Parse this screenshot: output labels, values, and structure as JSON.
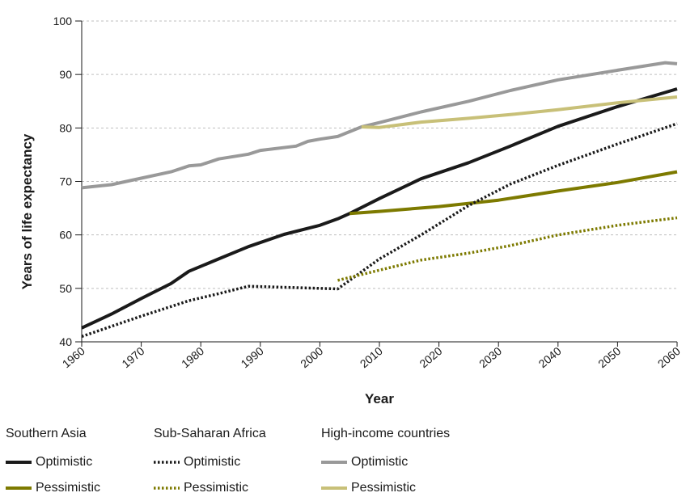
{
  "chart_data": {
    "type": "line",
    "title": "",
    "xlabel": "Year",
    "ylabel": "Years of life expectancy",
    "xlim": [
      1960,
      2060
    ],
    "ylim": [
      40,
      100
    ],
    "x_ticks": [
      "1960",
      "1970",
      "1980",
      "1990",
      "2000",
      "2010",
      "2020",
      "2030",
      "2040",
      "2050",
      "2060"
    ],
    "y_ticks": [
      "40",
      "50",
      "60",
      "70",
      "80",
      "90",
      "100"
    ],
    "grid": "horizontal dashed",
    "legend_position": "bottom",
    "series": [
      {
        "group": "Southern Asia",
        "name": "Optimistic",
        "color": "#1a1a1a",
        "style": "solid",
        "x": [
          1960,
          1965,
          1970,
          1975,
          1978,
          1983,
          1988,
          1994,
          2000,
          2003,
          2005,
          2010,
          2017,
          2025,
          2032,
          2040,
          2050,
          2060
        ],
        "y": [
          42.6,
          45.2,
          48.1,
          50.9,
          53.2,
          55.5,
          57.8,
          60.1,
          61.8,
          63.0,
          64.0,
          66.8,
          70.5,
          73.5,
          76.6,
          80.3,
          84.0,
          87.3
        ]
      },
      {
        "group": "Southern Asia",
        "name": "Pessimistic",
        "color": "#7d7a00",
        "style": "solid",
        "x": [
          2005,
          2010,
          2020,
          2030,
          2040,
          2050,
          2060
        ],
        "y": [
          64.0,
          64.4,
          65.3,
          66.5,
          68.2,
          69.8,
          71.8
        ]
      },
      {
        "group": "Sub-Saharan Africa",
        "name": "Optimistic",
        "color": "#1a1a1a",
        "style": "dotted",
        "x": [
          1960,
          1965,
          1970,
          1975,
          1978,
          1983,
          1988,
          1994,
          2000,
          2003,
          2010,
          2017,
          2025,
          2032,
          2040,
          2050,
          2060
        ],
        "y": [
          41.0,
          42.9,
          44.8,
          46.6,
          47.7,
          49.0,
          50.4,
          50.2,
          50.0,
          49.9,
          55.5,
          60.0,
          65.5,
          69.5,
          73.0,
          77.0,
          80.8
        ]
      },
      {
        "group": "Sub-Saharan Africa",
        "name": "Pessimistic",
        "color": "#7d7a00",
        "style": "dotted",
        "x": [
          2003,
          2010,
          2017,
          2025,
          2032,
          2040,
          2050,
          2060
        ],
        "y": [
          51.5,
          53.4,
          55.3,
          56.6,
          58.0,
          60.0,
          61.8,
          63.2
        ]
      },
      {
        "group": "High-income countries",
        "name": "Optimistic",
        "color": "#999999",
        "style": "solid",
        "x": [
          1960,
          1965,
          1970,
          1975,
          1978,
          1980,
          1983,
          1988,
          1990,
          1996,
          1998,
          2000,
          2003,
          2007,
          2010,
          2017,
          2025,
          2032,
          2040,
          2050,
          2058,
          2060
        ],
        "y": [
          68.8,
          69.4,
          70.6,
          71.8,
          72.9,
          73.1,
          74.2,
          75.1,
          75.8,
          76.6,
          77.5,
          77.9,
          78.4,
          80.2,
          81.0,
          83.0,
          85.0,
          87.0,
          89.0,
          90.8,
          92.2,
          92.0
        ]
      },
      {
        "group": "High-income countries",
        "name": "Pessimistic",
        "color": "#c8c078",
        "style": "solid",
        "x": [
          2007,
          2010,
          2017,
          2025,
          2032,
          2040,
          2050,
          2060
        ],
        "y": [
          80.2,
          80.1,
          81.1,
          81.8,
          82.5,
          83.4,
          84.7,
          85.8
        ]
      }
    ]
  },
  "legend": {
    "groups": [
      {
        "title": "Southern Asia",
        "entries": [
          {
            "label": "Optimistic",
            "color": "#1a1a1a",
            "style": "solid"
          },
          {
            "label": "Pessimistic",
            "color": "#7d7a00",
            "style": "solid"
          }
        ]
      },
      {
        "title": "Sub-Saharan Africa",
        "entries": [
          {
            "label": "Optimistic",
            "color": "#1a1a1a",
            "style": "dotted"
          },
          {
            "label": "Pessimistic",
            "color": "#7d7a00",
            "style": "dotted"
          }
        ]
      },
      {
        "title": "High-income countries",
        "entries": [
          {
            "label": "Optimistic",
            "color": "#999999",
            "style": "solid"
          },
          {
            "label": "Pessimistic",
            "color": "#c8c078",
            "style": "solid"
          }
        ]
      }
    ]
  }
}
